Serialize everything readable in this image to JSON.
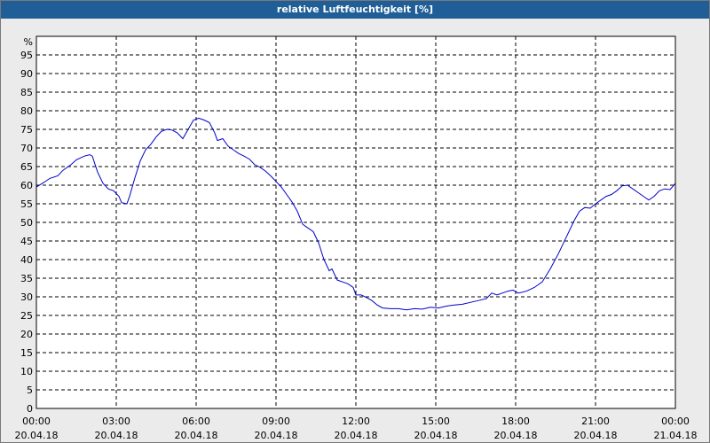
{
  "header": {
    "title": "relative Luftfeuchtigkeit [%]"
  },
  "chart_data": {
    "type": "line",
    "title": "relative Luftfeuchtigkeit [%]",
    "y_unit_label": "%",
    "ylim": [
      0,
      100
    ],
    "y_ticks": [
      0,
      5,
      10,
      15,
      20,
      25,
      30,
      35,
      40,
      45,
      50,
      55,
      60,
      65,
      70,
      75,
      80,
      85,
      90,
      95
    ],
    "xlim": [
      0,
      24
    ],
    "x_ticks": [
      {
        "x": 0,
        "time": "00:00",
        "date": "20.04.18"
      },
      {
        "x": 3,
        "time": "03:00",
        "date": "20.04.18"
      },
      {
        "x": 6,
        "time": "06:00",
        "date": "20.04.18"
      },
      {
        "x": 9,
        "time": "09:00",
        "date": "20.04.18"
      },
      {
        "x": 12,
        "time": "12:00",
        "date": "20.04.18"
      },
      {
        "x": 15,
        "time": "15:00",
        "date": "20.04.18"
      },
      {
        "x": 18,
        "time": "18:00",
        "date": "20.04.18"
      },
      {
        "x": 21,
        "time": "21:00",
        "date": "20.04.18"
      },
      {
        "x": 24,
        "time": "00:00",
        "date": "21.04.18"
      }
    ],
    "grid": true,
    "series": [
      {
        "color": "#0000cc",
        "points": [
          [
            0.0,
            59.5
          ],
          [
            0.3,
            60.8
          ],
          [
            0.5,
            61.8
          ],
          [
            0.8,
            62.5
          ],
          [
            1.0,
            64.0
          ],
          [
            1.3,
            65.5
          ],
          [
            1.5,
            66.8
          ],
          [
            1.8,
            67.8
          ],
          [
            2.0,
            68.2
          ],
          [
            2.1,
            67.8
          ],
          [
            2.3,
            63.5
          ],
          [
            2.5,
            60.5
          ],
          [
            2.7,
            59.0
          ],
          [
            2.9,
            58.5
          ],
          [
            3.1,
            57.0
          ],
          [
            3.2,
            55.3
          ],
          [
            3.4,
            55.0
          ],
          [
            3.5,
            57.0
          ],
          [
            3.7,
            62.0
          ],
          [
            3.9,
            66.5
          ],
          [
            4.1,
            69.5
          ],
          [
            4.3,
            71.0
          ],
          [
            4.5,
            73.0
          ],
          [
            4.7,
            74.5
          ],
          [
            4.9,
            75.0
          ],
          [
            5.1,
            74.8
          ],
          [
            5.3,
            74.0
          ],
          [
            5.5,
            72.5
          ],
          [
            5.7,
            75.0
          ],
          [
            5.9,
            77.5
          ],
          [
            6.1,
            78.0
          ],
          [
            6.3,
            77.5
          ],
          [
            6.5,
            76.8
          ],
          [
            6.7,
            74.0
          ],
          [
            6.8,
            72.0
          ],
          [
            7.0,
            72.5
          ],
          [
            7.2,
            70.5
          ],
          [
            7.4,
            69.5
          ],
          [
            7.6,
            68.5
          ],
          [
            7.8,
            67.8
          ],
          [
            8.0,
            67.0
          ],
          [
            8.2,
            65.5
          ],
          [
            8.4,
            64.8
          ],
          [
            8.6,
            63.8
          ],
          [
            8.8,
            62.5
          ],
          [
            9.0,
            61.0
          ],
          [
            9.2,
            59.5
          ],
          [
            9.4,
            57.5
          ],
          [
            9.6,
            55.5
          ],
          [
            9.8,
            53.0
          ],
          [
            10.0,
            49.5
          ],
          [
            10.2,
            48.5
          ],
          [
            10.4,
            47.5
          ],
          [
            10.6,
            44.5
          ],
          [
            10.8,
            40.0
          ],
          [
            11.0,
            37.0
          ],
          [
            11.1,
            37.5
          ],
          [
            11.3,
            34.5
          ],
          [
            11.5,
            34.0
          ],
          [
            11.7,
            33.5
          ],
          [
            11.9,
            32.5
          ],
          [
            12.0,
            30.5
          ],
          [
            12.2,
            30.5
          ],
          [
            12.4,
            29.8
          ],
          [
            12.6,
            29.0
          ],
          [
            12.8,
            27.8
          ],
          [
            13.0,
            27.0
          ],
          [
            13.3,
            26.8
          ],
          [
            13.6,
            26.8
          ],
          [
            13.9,
            26.5
          ],
          [
            14.2,
            26.8
          ],
          [
            14.5,
            26.7
          ],
          [
            14.8,
            27.2
          ],
          [
            15.1,
            27.0
          ],
          [
            15.4,
            27.5
          ],
          [
            15.7,
            27.8
          ],
          [
            16.0,
            28.0
          ],
          [
            16.3,
            28.5
          ],
          [
            16.6,
            29.0
          ],
          [
            16.9,
            29.5
          ],
          [
            17.1,
            31.0
          ],
          [
            17.3,
            30.5
          ],
          [
            17.5,
            31.0
          ],
          [
            17.7,
            31.5
          ],
          [
            17.9,
            31.8
          ],
          [
            18.1,
            31.0
          ],
          [
            18.4,
            31.5
          ],
          [
            18.7,
            32.5
          ],
          [
            19.0,
            34.0
          ],
          [
            19.3,
            37.5
          ],
          [
            19.6,
            41.5
          ],
          [
            19.9,
            46.0
          ],
          [
            20.2,
            50.5
          ],
          [
            20.4,
            53.0
          ],
          [
            20.6,
            54.0
          ],
          [
            20.8,
            53.8
          ],
          [
            21.0,
            55.0
          ],
          [
            21.2,
            56.0
          ],
          [
            21.4,
            57.0
          ],
          [
            21.6,
            57.5
          ],
          [
            21.8,
            58.5
          ],
          [
            22.0,
            59.8
          ],
          [
            22.2,
            60.0
          ],
          [
            22.4,
            59.0
          ],
          [
            22.6,
            58.0
          ],
          [
            22.8,
            57.0
          ],
          [
            23.0,
            56.0
          ],
          [
            23.2,
            57.0
          ],
          [
            23.4,
            58.5
          ],
          [
            23.6,
            59.0
          ],
          [
            23.8,
            58.8
          ],
          [
            24.0,
            60.5
          ]
        ]
      }
    ]
  }
}
